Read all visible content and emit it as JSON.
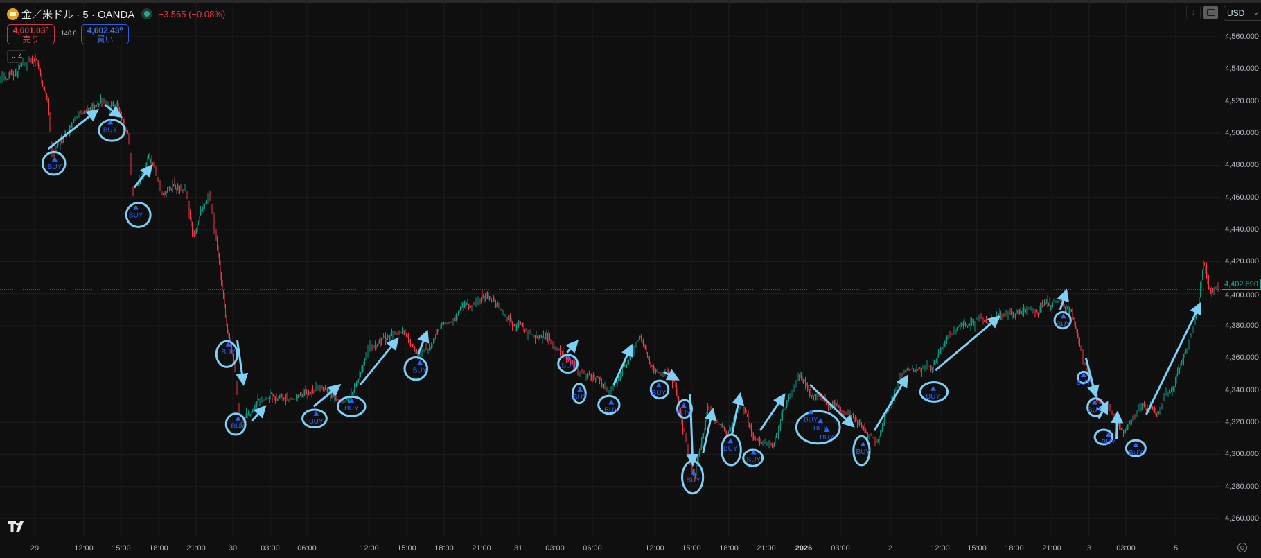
{
  "header": {
    "symbol_title": "金／米ドル · 5 · OANDA",
    "change": "−3.565 (−0.08%)",
    "market_status_color": "#22ab94",
    "sell": {
      "price": "4,601.03⁰",
      "label": "売り"
    },
    "buy": {
      "price": "4,602.43⁰",
      "label": "買い"
    },
    "spread": "140.0",
    "indicator_count": "4"
  },
  "toolbar": {
    "currency": "USD",
    "scroll_down_icon": "arrow-down-icon",
    "autoscale_icon": "frame-icon"
  },
  "colors": {
    "up": "#089981",
    "down": "#f23645",
    "annotation": "#7fd0f7",
    "signal": "#2962ff",
    "background": "#0f0f0f"
  },
  "chart_data": {
    "type": "candlestick",
    "symbol": "XAU/USD",
    "interval_minutes": 5,
    "current_price": "4,402.690",
    "ylim": [
      4248,
      4583
    ],
    "y_ticks": [
      "4,560.000",
      "4,540.000",
      "4,520.000",
      "4,500.000",
      "4,480.000",
      "4,460.000",
      "4,440.000",
      "4,420.000",
      "4,400.000",
      "4,380.000",
      "4,360.000",
      "4,340.000",
      "4,320.000",
      "4,300.000",
      "4,280.000",
      "4,260.000"
    ],
    "x_ticks": [
      {
        "label": "29",
        "time": "12-29 08:00"
      },
      {
        "label": "12:00",
        "time": "12-29 12:00"
      },
      {
        "label": "15:00",
        "time": "12-29 15:00"
      },
      {
        "label": "18:00",
        "time": "12-29 18:00"
      },
      {
        "label": "21:00",
        "time": "12-29 21:00"
      },
      {
        "label": "30",
        "time": "12-30 00:00"
      },
      {
        "label": "03:00",
        "time": "12-30 03:00"
      },
      {
        "label": "06:00",
        "time": "12-30 06:00"
      },
      {
        "label": "12:00",
        "time": "12-30 12:00"
      },
      {
        "label": "15:00",
        "time": "12-30 15:00"
      },
      {
        "label": "18:00",
        "time": "12-30 18:00"
      },
      {
        "label": "21:00",
        "time": "12-30 21:00"
      },
      {
        "label": "31",
        "time": "12-31 00:00"
      },
      {
        "label": "03:00",
        "time": "12-31 03:00"
      },
      {
        "label": "06:00",
        "time": "12-31 06:00"
      },
      {
        "label": "12:00",
        "time": "12-31 12:00"
      },
      {
        "label": "15:00",
        "time": "12-31 15:00"
      },
      {
        "label": "18:00",
        "time": "12-31 18:00"
      },
      {
        "label": "21:00",
        "time": "12-31 21:00"
      },
      {
        "label": "2026",
        "time": "01-01 00:00",
        "bold": true
      },
      {
        "label": "03:00",
        "time": "01-01 03:00"
      },
      {
        "label": "2",
        "time": "01-02 08:00"
      },
      {
        "label": "12:00",
        "time": "01-02 12:00"
      },
      {
        "label": "15:00",
        "time": "01-02 15:00"
      },
      {
        "label": "18:00",
        "time": "01-02 18:00"
      },
      {
        "label": "21:00",
        "time": "01-02 21:00"
      },
      {
        "label": "3",
        "time": "01-03 00:00"
      },
      {
        "label": "03:00",
        "time": "01-03 03:00"
      },
      {
        "label": "5",
        "time": "01-05 08:00"
      }
    ],
    "price_path": [
      [
        "12-29 05:12",
        4533
      ],
      [
        "12-29 08:06",
        4547
      ],
      [
        "12-29 09:06",
        4518
      ],
      [
        "12-29 09:24",
        4485
      ],
      [
        "12-29 11:42",
        4515
      ],
      [
        "12-29 14:36",
        4517
      ],
      [
        "12-29 15:36",
        4495
      ],
      [
        "12-29 15:54",
        4462
      ],
      [
        "12-29 17:12",
        4487
      ],
      [
        "12-29 18:12",
        4465
      ],
      [
        "12-29 20:06",
        4468
      ],
      [
        "12-29 20:48",
        4437
      ],
      [
        "12-29 22:00",
        4465
      ],
      [
        "12-29 22:42",
        4433
      ],
      [
        "12-29 23:24",
        4387
      ],
      [
        "12-30 00:12",
        4347
      ],
      [
        "12-30 00:36",
        4317
      ],
      [
        "12-30 02:00",
        4337
      ],
      [
        "12-30 04:36",
        4335
      ],
      [
        "12-30 07:24",
        4342
      ],
      [
        "12-30 09:42",
        4330
      ],
      [
        "12-30 12:00",
        4367
      ],
      [
        "12-30 14:36",
        4377
      ],
      [
        "12-30 16:00",
        4362
      ],
      [
        "12-30 18:30",
        4383
      ],
      [
        "12-30 21:42",
        4402
      ],
      [
        "12-30 23:42",
        4377
      ],
      [
        "12-31 02:18",
        4375
      ],
      [
        "12-31 03:42",
        4362
      ],
      [
        "12-31 06:18",
        4347
      ],
      [
        "12-31 07:48",
        4338
      ],
      [
        "12-31 10:30",
        4372
      ],
      [
        "12-31 11:42",
        4352
      ],
      [
        "12-31 13:42",
        4345
      ],
      [
        "12-31 14:42",
        4302
      ],
      [
        "12-31 15:12",
        4287
      ],
      [
        "12-31 16:18",
        4327
      ],
      [
        "12-31 17:54",
        4312
      ],
      [
        "12-31 19:00",
        4333
      ],
      [
        "12-31 19:54",
        4310
      ],
      [
        "12-31 21:30",
        4308
      ],
      [
        "12-31 23:42",
        4352
      ],
      [
        "01-01 00:42",
        4337
      ],
      [
        "01-01 03:18",
        4327
      ],
      [
        "01-01 05:18",
        4312
      ],
      [
        "01-01 06:00",
        4310
      ],
      [
        "01-02 08:48",
        4349
      ],
      [
        "01-02 11:24",
        4352
      ],
      [
        "01-02 12:42",
        4377
      ],
      [
        "01-02 16:36",
        4387
      ],
      [
        "01-02 19:12",
        4390
      ],
      [
        "01-02 21:48",
        4397
      ],
      [
        "01-02 22:30",
        4390
      ],
      [
        "01-02 23:30",
        4362
      ],
      [
        "01-03 00:24",
        4337
      ],
      [
        "01-03 01:42",
        4327
      ],
      [
        "01-03 02:42",
        4312
      ],
      [
        "01-03 04:18",
        4330
      ],
      [
        "01-03 05:36",
        4325
      ],
      [
        "01-03 06:00",
        4333
      ],
      [
        "01-05 08:10",
        4350
      ],
      [
        "01-05 08:48",
        4367
      ],
      [
        "01-05 09:48",
        4392
      ],
      [
        "01-05 10:12",
        4418
      ],
      [
        "01-05 10:48",
        4398
      ],
      [
        "01-05 11:28",
        4402.69
      ]
    ],
    "signal_label": "BUY",
    "grid": true
  }
}
